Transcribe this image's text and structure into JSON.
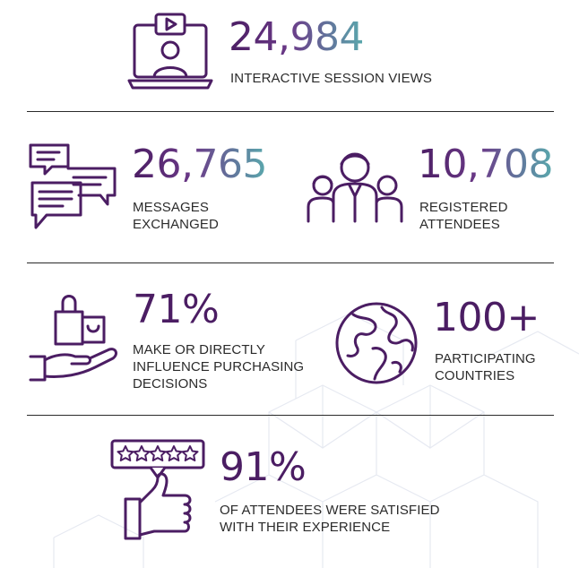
{
  "colors": {
    "primary": "#4b1d63",
    "accent": "#5aa9ad",
    "text": "#2b2b2b"
  },
  "stats": {
    "session_views": {
      "value": "24,984",
      "label": "INTERACTIVE SESSION VIEWS",
      "icon": "video-session-icon"
    },
    "messages": {
      "value": "26,765",
      "label_line1": "MESSAGES",
      "label_line2": "EXCHANGED",
      "icon": "chat-bubbles-icon"
    },
    "attendees": {
      "value": "10,708",
      "label_line1": "REGISTERED",
      "label_line2": "ATTENDEES",
      "icon": "people-group-icon"
    },
    "purchasing": {
      "value": "71%",
      "label_line1": "MAKE OR DIRECTLY",
      "label_line2": "INFLUENCE PURCHASING",
      "label_line3": "DECISIONS",
      "icon": "shopping-hand-icon"
    },
    "countries": {
      "value": "100+",
      "label_line1": "PARTICIPATING",
      "label_line2": "COUNTRIES",
      "icon": "globe-icon"
    },
    "satisfaction": {
      "value": "91%",
      "label_line1": "OF ATTENDEES WERE SATISFIED",
      "label_line2": "WITH THEIR EXPERIENCE",
      "icon": "five-star-thumbs-up-icon"
    }
  }
}
